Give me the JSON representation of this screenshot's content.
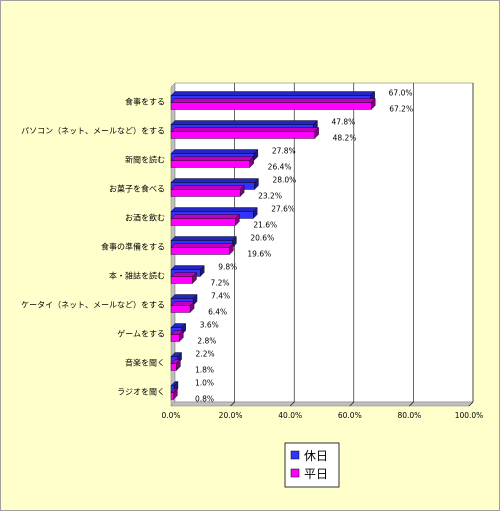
{
  "chart_data": {
    "type": "bar",
    "orientation": "horizontal",
    "categories": [
      "食事をする",
      "パソコン（ネット、メールなど）をする",
      "新聞を読む",
      "お菓子を食べる",
      "お酒を飲む",
      "食事の準備をする",
      "本・雑誌を読む",
      "ケータイ（ネット、メールなど）をする",
      "ゲームをする",
      "音楽を聞く",
      "ラジオを聞く"
    ],
    "series": [
      {
        "name": "休日",
        "color": "#3333ff",
        "values": [
          67.0,
          47.8,
          27.8,
          28.0,
          27.6,
          20.6,
          9.8,
          7.4,
          3.6,
          2.2,
          1.0
        ],
        "labels": [
          "67.0%",
          "47.8%",
          "27.8%",
          "28.0%",
          "27.6%",
          "20.6%",
          "9.8%",
          "7.4%",
          "3.6%",
          "2.2%",
          "1.0%"
        ]
      },
      {
        "name": "平日",
        "color": "#ff00ff",
        "values": [
          67.2,
          48.2,
          26.4,
          23.2,
          21.6,
          19.6,
          7.2,
          6.4,
          2.8,
          1.8,
          0.8
        ],
        "labels": [
          "67.2%",
          "48.2%",
          "26.4%",
          "23.2%",
          "21.6%",
          "19.6%",
          "7.2%",
          "6.4%",
          "2.8%",
          "1.8%",
          "0.8%"
        ]
      }
    ],
    "xlim": [
      0,
      100
    ],
    "xticks": [
      "0.0%",
      "20.0%",
      "40.0%",
      "60.0%",
      "80.0%",
      "100.0%"
    ],
    "grid": true,
    "legend_position": "bottom-center",
    "background_color": "#ffffcc",
    "plot_background": "#ffffff"
  }
}
